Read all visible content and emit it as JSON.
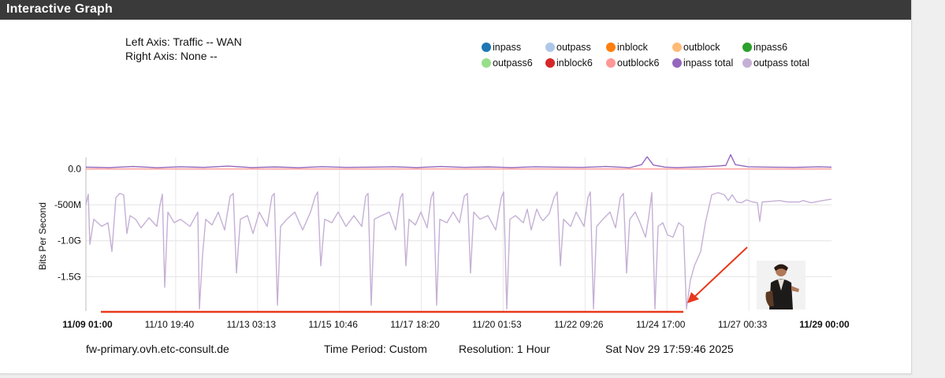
{
  "title": "Interactive Graph",
  "axis_info": {
    "left": "Left Axis: Traffic -- WAN",
    "right": "Right Axis: None --"
  },
  "legend": [
    {
      "label": "inpass",
      "color": "#1f77b4"
    },
    {
      "label": "outpass",
      "color": "#aec7e8"
    },
    {
      "label": "inblock",
      "color": "#ff7f0e"
    },
    {
      "label": "outblock",
      "color": "#ffbb78"
    },
    {
      "label": "inpass6",
      "color": "#2ca02c"
    },
    {
      "label": "outpass6",
      "color": "#98df8a"
    },
    {
      "label": "inblock6",
      "color": "#d62728"
    },
    {
      "label": "outblock6",
      "color": "#ff9896"
    },
    {
      "label": "inpass total",
      "color": "#9467bd"
    },
    {
      "label": "outpass total",
      "color": "#c5b0d5"
    }
  ],
  "chart_data": {
    "type": "line",
    "ylabel": "Bits Per Second",
    "y_ticks": [
      {
        "value": 0,
        "label": "0.0"
      },
      {
        "value": -500000000,
        "label": "-500M"
      },
      {
        "value": -1000000000,
        "label": "-1.0G"
      },
      {
        "value": -1500000000,
        "label": "-1.5G"
      }
    ],
    "ylim": [
      -1980000000,
      160000000
    ],
    "x_ticks": [
      {
        "label": "11/09 01:00",
        "bold": true
      },
      {
        "label": "11/10 19:40",
        "bold": false
      },
      {
        "label": "11/13 03:13",
        "bold": false
      },
      {
        "label": "11/15 10:46",
        "bold": false
      },
      {
        "label": "11/17 18:20",
        "bold": false
      },
      {
        "label": "11/20 01:53",
        "bold": false
      },
      {
        "label": "11/22 09:26",
        "bold": false
      },
      {
        "label": "11/24 17:00",
        "bold": false
      },
      {
        "label": "11/27 00:33",
        "bold": false
      },
      {
        "label": "11/29 00:00",
        "bold": true
      }
    ],
    "series": [
      {
        "name": "inpass total",
        "color": "#9467bd",
        "points": [
          [
            0,
            25
          ],
          [
            30,
            20
          ],
          [
            60,
            35
          ],
          [
            90,
            18
          ],
          [
            120,
            30
          ],
          [
            150,
            22
          ],
          [
            180,
            40
          ],
          [
            210,
            20
          ],
          [
            240,
            28
          ],
          [
            270,
            18
          ],
          [
            300,
            32
          ],
          [
            330,
            22
          ],
          [
            360,
            25
          ],
          [
            390,
            30
          ],
          [
            420,
            20
          ],
          [
            450,
            35
          ],
          [
            480,
            22
          ],
          [
            510,
            28
          ],
          [
            540,
            20
          ],
          [
            570,
            30
          ],
          [
            600,
            25
          ],
          [
            630,
            22
          ],
          [
            660,
            35
          ],
          [
            690,
            18
          ],
          [
            705,
            60
          ],
          [
            712,
            170
          ],
          [
            720,
            55
          ],
          [
            735,
            25
          ],
          [
            750,
            20
          ],
          [
            780,
            28
          ],
          [
            800,
            40
          ],
          [
            812,
            50
          ],
          [
            818,
            200
          ],
          [
            824,
            60
          ],
          [
            840,
            30
          ],
          [
            870,
            25
          ],
          [
            900,
            22
          ],
          [
            930,
            30
          ],
          [
            946,
            25
          ]
        ]
      },
      {
        "name": "outpass total",
        "color": "#c5b0d5",
        "points": [
          [
            0,
            -500
          ],
          [
            3,
            -350
          ],
          [
            5,
            -1050
          ],
          [
            10,
            -700
          ],
          [
            20,
            -800
          ],
          [
            28,
            -750
          ],
          [
            33,
            -1150
          ],
          [
            38,
            -400
          ],
          [
            43,
            -340
          ],
          [
            48,
            -360
          ],
          [
            52,
            -900
          ],
          [
            56,
            -650
          ],
          [
            63,
            -700
          ],
          [
            70,
            -820
          ],
          [
            80,
            -680
          ],
          [
            90,
            -800
          ],
          [
            94,
            -500
          ],
          [
            97,
            -350
          ],
          [
            100,
            -1650
          ],
          [
            104,
            -600
          ],
          [
            112,
            -750
          ],
          [
            120,
            -700
          ],
          [
            132,
            -800
          ],
          [
            142,
            -600
          ],
          [
            144,
            -1950
          ],
          [
            148,
            -1200
          ],
          [
            152,
            -700
          ],
          [
            160,
            -780
          ],
          [
            168,
            -600
          ],
          [
            176,
            -850
          ],
          [
            183,
            -380
          ],
          [
            187,
            -340
          ],
          [
            191,
            -1450
          ],
          [
            196,
            -700
          ],
          [
            205,
            -650
          ],
          [
            212,
            -900
          ],
          [
            220,
            -600
          ],
          [
            230,
            -800
          ],
          [
            236,
            -380
          ],
          [
            239,
            -340
          ],
          [
            243,
            -1900
          ],
          [
            247,
            -800
          ],
          [
            255,
            -700
          ],
          [
            265,
            -600
          ],
          [
            275,
            -850
          ],
          [
            285,
            -600
          ],
          [
            291,
            -380
          ],
          [
            294,
            -320
          ],
          [
            298,
            -1350
          ],
          [
            303,
            -700
          ],
          [
            312,
            -750
          ],
          [
            320,
            -600
          ],
          [
            330,
            -800
          ],
          [
            340,
            -650
          ],
          [
            350,
            -800
          ],
          [
            355,
            -380
          ],
          [
            358,
            -340
          ],
          [
            362,
            -1900
          ],
          [
            366,
            -700
          ],
          [
            375,
            -650
          ],
          [
            385,
            -600
          ],
          [
            393,
            -850
          ],
          [
            399,
            -400
          ],
          [
            402,
            -340
          ],
          [
            406,
            -1350
          ],
          [
            410,
            -700
          ],
          [
            418,
            -780
          ],
          [
            425,
            -600
          ],
          [
            433,
            -820
          ],
          [
            438,
            -400
          ],
          [
            441,
            -320
          ],
          [
            445,
            -1900
          ],
          [
            449,
            -700
          ],
          [
            458,
            -750
          ],
          [
            466,
            -600
          ],
          [
            474,
            -750
          ],
          [
            480,
            -380
          ],
          [
            484,
            -340
          ],
          [
            488,
            -1450
          ],
          [
            492,
            -600
          ],
          [
            500,
            -700
          ],
          [
            510,
            -650
          ],
          [
            520,
            -850
          ],
          [
            527,
            -400
          ],
          [
            530,
            -320
          ],
          [
            534,
            -1950
          ],
          [
            538,
            -700
          ],
          [
            545,
            -650
          ],
          [
            555,
            -750
          ],
          [
            560,
            -560
          ],
          [
            565,
            -850
          ],
          [
            572,
            -560
          ],
          [
            577,
            -680
          ],
          [
            580,
            -720
          ],
          [
            588,
            -620
          ],
          [
            594,
            -400
          ],
          [
            598,
            -320
          ],
          [
            602,
            -1350
          ],
          [
            606,
            -700
          ],
          [
            615,
            -800
          ],
          [
            622,
            -600
          ],
          [
            632,
            -800
          ],
          [
            637,
            -400
          ],
          [
            640,
            -320
          ],
          [
            644,
            -1950
          ],
          [
            648,
            -800
          ],
          [
            656,
            -700
          ],
          [
            665,
            -600
          ],
          [
            672,
            -820
          ],
          [
            678,
            -400
          ],
          [
            682,
            -340
          ],
          [
            686,
            -1450
          ],
          [
            690,
            -700
          ],
          [
            697,
            -600
          ],
          [
            703,
            -750
          ],
          [
            710,
            -950
          ],
          [
            714,
            -680
          ],
          [
            718,
            -330
          ],
          [
            722,
            -1950
          ],
          [
            726,
            -800
          ],
          [
            732,
            -750
          ],
          [
            738,
            -920
          ],
          [
            745,
            -950
          ],
          [
            752,
            -750
          ],
          [
            758,
            -800
          ],
          [
            762,
            -1950
          ],
          [
            767,
            -1550
          ],
          [
            772,
            -1350
          ],
          [
            780,
            -1150
          ],
          [
            786,
            -750
          ],
          [
            794,
            -360
          ],
          [
            802,
            -330
          ],
          [
            810,
            -360
          ],
          [
            815,
            -440
          ],
          [
            820,
            -360
          ],
          [
            826,
            -460
          ],
          [
            832,
            -470
          ],
          [
            838,
            -430
          ],
          [
            846,
            -460
          ],
          [
            852,
            -470
          ],
          [
            855,
            -730
          ],
          [
            858,
            -460
          ],
          [
            870,
            -450
          ],
          [
            880,
            -440
          ],
          [
            890,
            -460
          ],
          [
            905,
            -460
          ],
          [
            910,
            -440
          ],
          [
            920,
            -470
          ],
          [
            930,
            -450
          ],
          [
            940,
            -430
          ],
          [
            946,
            -420
          ]
        ]
      },
      {
        "name": "outblock6",
        "color": "#ff9896",
        "points": [
          [
            0,
            0
          ],
          [
            946,
            0
          ]
        ]
      }
    ]
  },
  "annotation_color": "#e8381c",
  "footer": {
    "host": "fw-primary.ovh.etc-consult.de",
    "period": "Time Period: Custom",
    "resolution": "Resolution: 1 Hour",
    "timestamp": "Sat Nov 29 17:59:46 2025"
  }
}
